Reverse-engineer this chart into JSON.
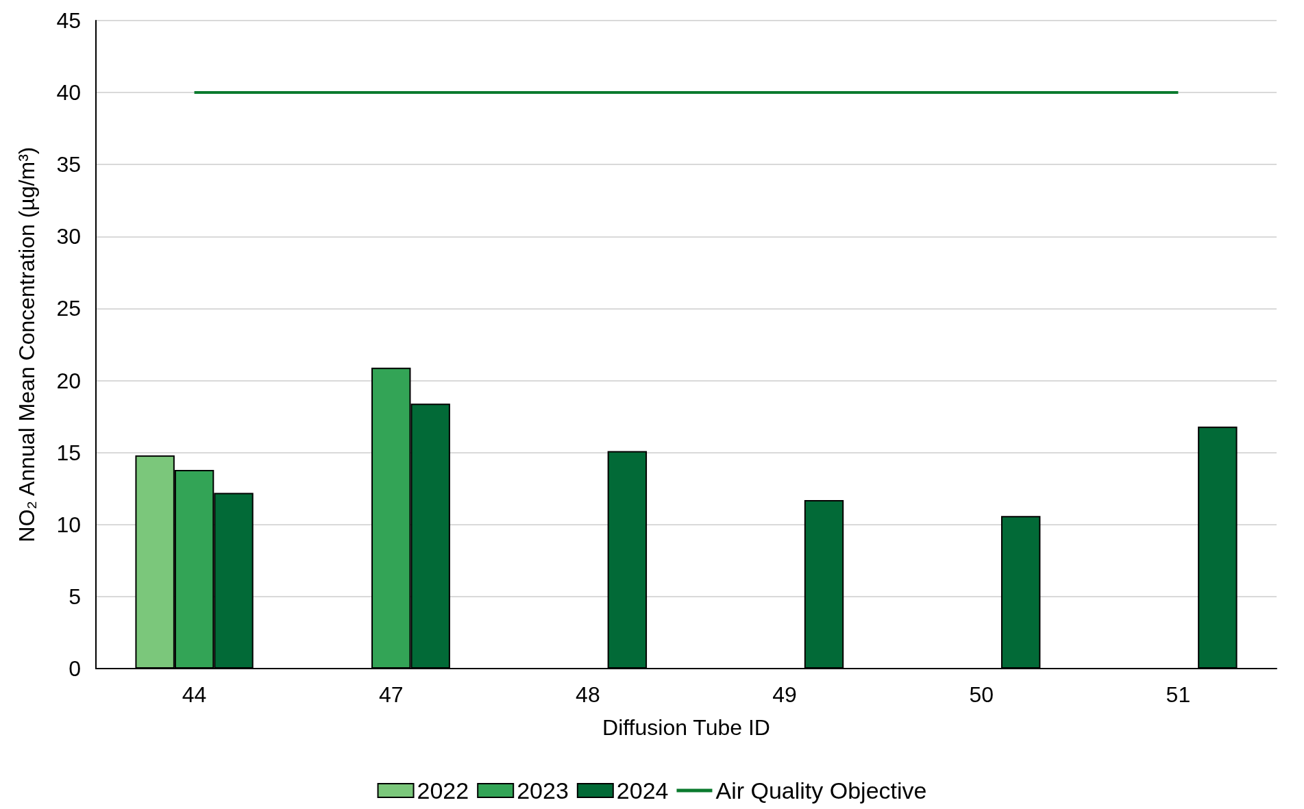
{
  "chart_data": {
    "type": "bar",
    "xlabel": "Diffusion Tube ID",
    "ylabel": "NO₂ Annual Mean Concentration (µg/m³)",
    "categories": [
      "44",
      "47",
      "48",
      "49",
      "50",
      "51"
    ],
    "series": [
      {
        "name": "2022",
        "color": "#7bc77b",
        "values": [
          14.8,
          null,
          null,
          null,
          null,
          null
        ]
      },
      {
        "name": "2023",
        "color": "#33a456",
        "values": [
          13.8,
          20.9,
          null,
          null,
          null,
          null
        ]
      },
      {
        "name": "2024",
        "color": "#026a37",
        "values": [
          12.2,
          18.4,
          15.1,
          11.7,
          10.6,
          16.8
        ]
      },
      {
        "name": "Air Quality Objective",
        "type": "line",
        "color": "#0b7a2e",
        "values": [
          40,
          40,
          40,
          40,
          40,
          40
        ]
      }
    ],
    "ylim": [
      0,
      45
    ],
    "yticks": [
      0,
      5,
      10,
      15,
      20,
      25,
      30,
      35,
      40,
      45
    ],
    "grid": "y",
    "legend": "bottom",
    "marker": "none"
  }
}
